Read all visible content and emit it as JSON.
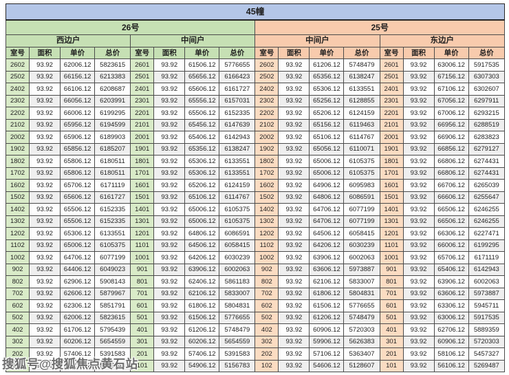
{
  "title": "45幢",
  "watermark": "搜狐号@搜狐焦点黄石站",
  "colors": {
    "title_bar": "#b4c6e7",
    "building_26": "#c6e0b4",
    "building_25": "#f8cbad",
    "room_cell_green": "#d9ebc8",
    "room_cell_peach": "#fbdcc2",
    "row_stripe": "#efefef",
    "border": "#4a4a4a"
  },
  "columns": [
    {
      "key": "room",
      "label": "室号"
    },
    {
      "key": "area",
      "label": "面积"
    },
    {
      "key": "unit-price",
      "label": "单价"
    },
    {
      "key": "total-price",
      "label": "总价"
    }
  ],
  "buildings": [
    {
      "name": "26号",
      "theme": "green",
      "groups": [
        {
          "name": "西边户",
          "rows": [
            [
              "2602",
              "93.92",
              "62006.12",
              "5823615"
            ],
            [
              "2502",
              "93.92",
              "66156.12",
              "6213383"
            ],
            [
              "2402",
              "93.92",
              "66106.12",
              "6208687"
            ],
            [
              "2302",
              "93.92",
              "66056.12",
              "6203991"
            ],
            [
              "2202",
              "93.92",
              "66006.12",
              "6199295"
            ],
            [
              "2102",
              "93.92",
              "65956.12",
              "6194599"
            ],
            [
              "2002",
              "93.92",
              "65906.12",
              "6189903"
            ],
            [
              "1902",
              "93.92",
              "65856.12",
              "6185207"
            ],
            [
              "1802",
              "93.92",
              "65806.12",
              "6180511"
            ],
            [
              "1702",
              "93.92",
              "65806.12",
              "6180511"
            ],
            [
              "1602",
              "93.92",
              "65706.12",
              "6171119"
            ],
            [
              "1502",
              "93.92",
              "65606.12",
              "6161727"
            ],
            [
              "1402",
              "93.92",
              "65506.12",
              "6152335"
            ],
            [
              "1302",
              "93.92",
              "65506.12",
              "6152335"
            ],
            [
              "1202",
              "93.92",
              "65306.12",
              "6133551"
            ],
            [
              "1102",
              "93.92",
              "65006.12",
              "6105375"
            ],
            [
              "1002",
              "93.92",
              "64706.12",
              "6077199"
            ],
            [
              "902",
              "93.92",
              "64406.12",
              "6049023"
            ],
            [
              "802",
              "93.92",
              "62906.12",
              "5908143"
            ],
            [
              "702",
              "93.92",
              "62606.12",
              "5879967"
            ],
            [
              "602",
              "93.92",
              "62306.12",
              "5851791"
            ],
            [
              "502",
              "93.92",
              "62006.12",
              "5823615"
            ],
            [
              "402",
              "93.92",
              "61706.12",
              "5795439"
            ],
            [
              "302",
              "93.92",
              "60206.12",
              "5654559"
            ],
            [
              "202",
              "93.92",
              "57406.12",
              "5391583"
            ],
            [
              "102",
              "93.92",
              "55406.12",
              "5203743"
            ]
          ]
        },
        {
          "name": "中间户",
          "rows": [
            [
              "2601",
              "93.92",
              "61506.12",
              "5776655"
            ],
            [
              "2501",
              "93.92",
              "65656.12",
              "6166423"
            ],
            [
              "2401",
              "93.92",
              "65606.12",
              "6161727"
            ],
            [
              "2301",
              "93.92",
              "65556.12",
              "6157031"
            ],
            [
              "2201",
              "93.92",
              "65506.12",
              "6152335"
            ],
            [
              "2101",
              "93.92",
              "65456.12",
              "6147639"
            ],
            [
              "2001",
              "93.92",
              "65406.12",
              "6142943"
            ],
            [
              "1901",
              "93.92",
              "65356.12",
              "6138247"
            ],
            [
              "1801",
              "93.92",
              "65306.12",
              "6133551"
            ],
            [
              "1701",
              "93.92",
              "65306.12",
              "6133551"
            ],
            [
              "1601",
              "93.92",
              "65206.12",
              "6124159"
            ],
            [
              "1501",
              "93.92",
              "65106.12",
              "6114767"
            ],
            [
              "1401",
              "93.92",
              "65006.12",
              "6105375"
            ],
            [
              "1301",
              "93.92",
              "65006.12",
              "6105375"
            ],
            [
              "1201",
              "93.92",
              "64806.12",
              "6086591"
            ],
            [
              "1101",
              "93.92",
              "64506.12",
              "6058415"
            ],
            [
              "1001",
              "93.92",
              "64206.12",
              "6030239"
            ],
            [
              "901",
              "93.92",
              "63906.12",
              "6002063"
            ],
            [
              "801",
              "93.92",
              "62406.12",
              "5861183"
            ],
            [
              "701",
              "93.92",
              "62106.12",
              "5833007"
            ],
            [
              "601",
              "93.92",
              "61806.12",
              "5804831"
            ],
            [
              "501",
              "93.92",
              "61506.12",
              "5776655"
            ],
            [
              "401",
              "93.92",
              "61206.12",
              "5748479"
            ],
            [
              "301",
              "93.92",
              "60206.12",
              "5654559"
            ],
            [
              "201",
              "93.92",
              "57406.12",
              "5391583"
            ],
            [
              "101",
              "93.92",
              "54906.12",
              "5156783"
            ]
          ]
        }
      ]
    },
    {
      "name": "25号",
      "theme": "peach",
      "groups": [
        {
          "name": "中间户",
          "rows": [
            [
              "2602",
              "93.92",
              "61206.12",
              "5748479"
            ],
            [
              "2502",
              "93.92",
              "65356.12",
              "6138247"
            ],
            [
              "2402",
              "93.92",
              "65306.12",
              "6133551"
            ],
            [
              "2302",
              "93.92",
              "65256.12",
              "6128855"
            ],
            [
              "2202",
              "93.92",
              "65206.12",
              "6124159"
            ],
            [
              "2102",
              "93.92",
              "65156.12",
              "6119463"
            ],
            [
              "2002",
              "93.92",
              "65106.12",
              "6114767"
            ],
            [
              "1902",
              "93.92",
              "65056.12",
              "6110071"
            ],
            [
              "1802",
              "93.92",
              "65006.12",
              "6105375"
            ],
            [
              "1702",
              "93.92",
              "65006.12",
              "6105375"
            ],
            [
              "1602",
              "93.92",
              "64906.12",
              "6095983"
            ],
            [
              "1502",
              "93.92",
              "64806.12",
              "6086591"
            ],
            [
              "1402",
              "93.92",
              "64706.12",
              "6077199"
            ],
            [
              "1302",
              "93.92",
              "64706.12",
              "6077199"
            ],
            [
              "1202",
              "93.92",
              "64506.12",
              "6058415"
            ],
            [
              "1102",
              "93.92",
              "64206.12",
              "6030239"
            ],
            [
              "1002",
              "93.92",
              "63906.12",
              "6002063"
            ],
            [
              "902",
              "93.92",
              "63606.12",
              "5973887"
            ],
            [
              "802",
              "93.92",
              "62106.12",
              "5833007"
            ],
            [
              "702",
              "93.92",
              "61806.12",
              "5804831"
            ],
            [
              "602",
              "93.92",
              "61506.12",
              "5776655"
            ],
            [
              "502",
              "93.92",
              "61206.12",
              "5748479"
            ],
            [
              "402",
              "93.92",
              "60906.12",
              "5720303"
            ],
            [
              "302",
              "93.92",
              "59906.12",
              "5626383"
            ],
            [
              "202",
              "93.92",
              "57106.12",
              "5363407"
            ],
            [
              "102",
              "93.92",
              "54606.12",
              "5128607"
            ]
          ]
        },
        {
          "name": "东边户",
          "rows": [
            [
              "2601",
              "93.92",
              "63006.12",
              "5917535"
            ],
            [
              "2501",
              "93.92",
              "67156.12",
              "6307303"
            ],
            [
              "2401",
              "93.92",
              "67106.12",
              "6302607"
            ],
            [
              "2301",
              "93.92",
              "67056.12",
              "6297911"
            ],
            [
              "2201",
              "93.92",
              "67006.12",
              "6293215"
            ],
            [
              "2101",
              "93.92",
              "66956.12",
              "6288519"
            ],
            [
              "2001",
              "93.92",
              "66906.12",
              "6283823"
            ],
            [
              "1901",
              "93.92",
              "66856.12",
              "6279127"
            ],
            [
              "1801",
              "93.92",
              "66806.12",
              "6274431"
            ],
            [
              "1701",
              "93.92",
              "66806.12",
              "6274431"
            ],
            [
              "1601",
              "93.92",
              "66706.12",
              "6265039"
            ],
            [
              "1501",
              "93.92",
              "66606.12",
              "6255647"
            ],
            [
              "1401",
              "93.92",
              "66506.12",
              "6246255"
            ],
            [
              "1301",
              "93.92",
              "66506.12",
              "6246255"
            ],
            [
              "1201",
              "93.92",
              "66306.12",
              "6227471"
            ],
            [
              "1101",
              "93.92",
              "66006.12",
              "6199295"
            ],
            [
              "1001",
              "93.92",
              "65706.12",
              "6171119"
            ],
            [
              "901",
              "93.92",
              "65406.12",
              "6142943"
            ],
            [
              "801",
              "93.92",
              "63906.12",
              "6002063"
            ],
            [
              "701",
              "93.92",
              "63606.12",
              "5973887"
            ],
            [
              "601",
              "93.92",
              "63306.12",
              "5945711"
            ],
            [
              "501",
              "93.92",
              "63006.12",
              "5917535"
            ],
            [
              "401",
              "93.92",
              "62706.12",
              "5889359"
            ],
            [
              "301",
              "93.92",
              "60906.12",
              "5720303"
            ],
            [
              "201",
              "93.92",
              "58106.12",
              "5457327"
            ],
            [
              "101",
              "93.92",
              "56106.12",
              "5269487"
            ]
          ]
        }
      ]
    }
  ]
}
